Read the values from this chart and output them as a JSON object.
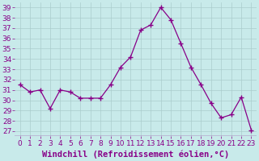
{
  "x": [
    0,
    1,
    2,
    3,
    4,
    5,
    6,
    7,
    8,
    9,
    10,
    11,
    12,
    13,
    14,
    15,
    16,
    17,
    18,
    19,
    20,
    21,
    22,
    23
  ],
  "y": [
    31.5,
    30.8,
    31.0,
    29.2,
    31.0,
    30.8,
    30.2,
    30.2,
    30.2,
    31.5,
    33.2,
    34.2,
    36.8,
    37.3,
    39.0,
    37.8,
    35.5,
    33.2,
    31.5,
    29.7,
    28.3,
    28.6,
    30.3,
    27.1
  ],
  "line_color": "#880088",
  "marker": "+",
  "marker_size": 4,
  "bg_color": "#c8eaea",
  "grid_color": "#aacccc",
  "xlabel": "Windchill (Refroidissement éolien,°C)",
  "xlabel_color": "#880088",
  "ylabel_ticks": [
    27,
    28,
    29,
    30,
    31,
    32,
    33,
    34,
    35,
    36,
    37,
    38,
    39
  ],
  "ylim": [
    26.5,
    39.5
  ],
  "xlim": [
    -0.5,
    23.5
  ],
  "tick_fontsize": 6.5,
  "label_fontsize": 7.5,
  "separator_color": "#880088"
}
